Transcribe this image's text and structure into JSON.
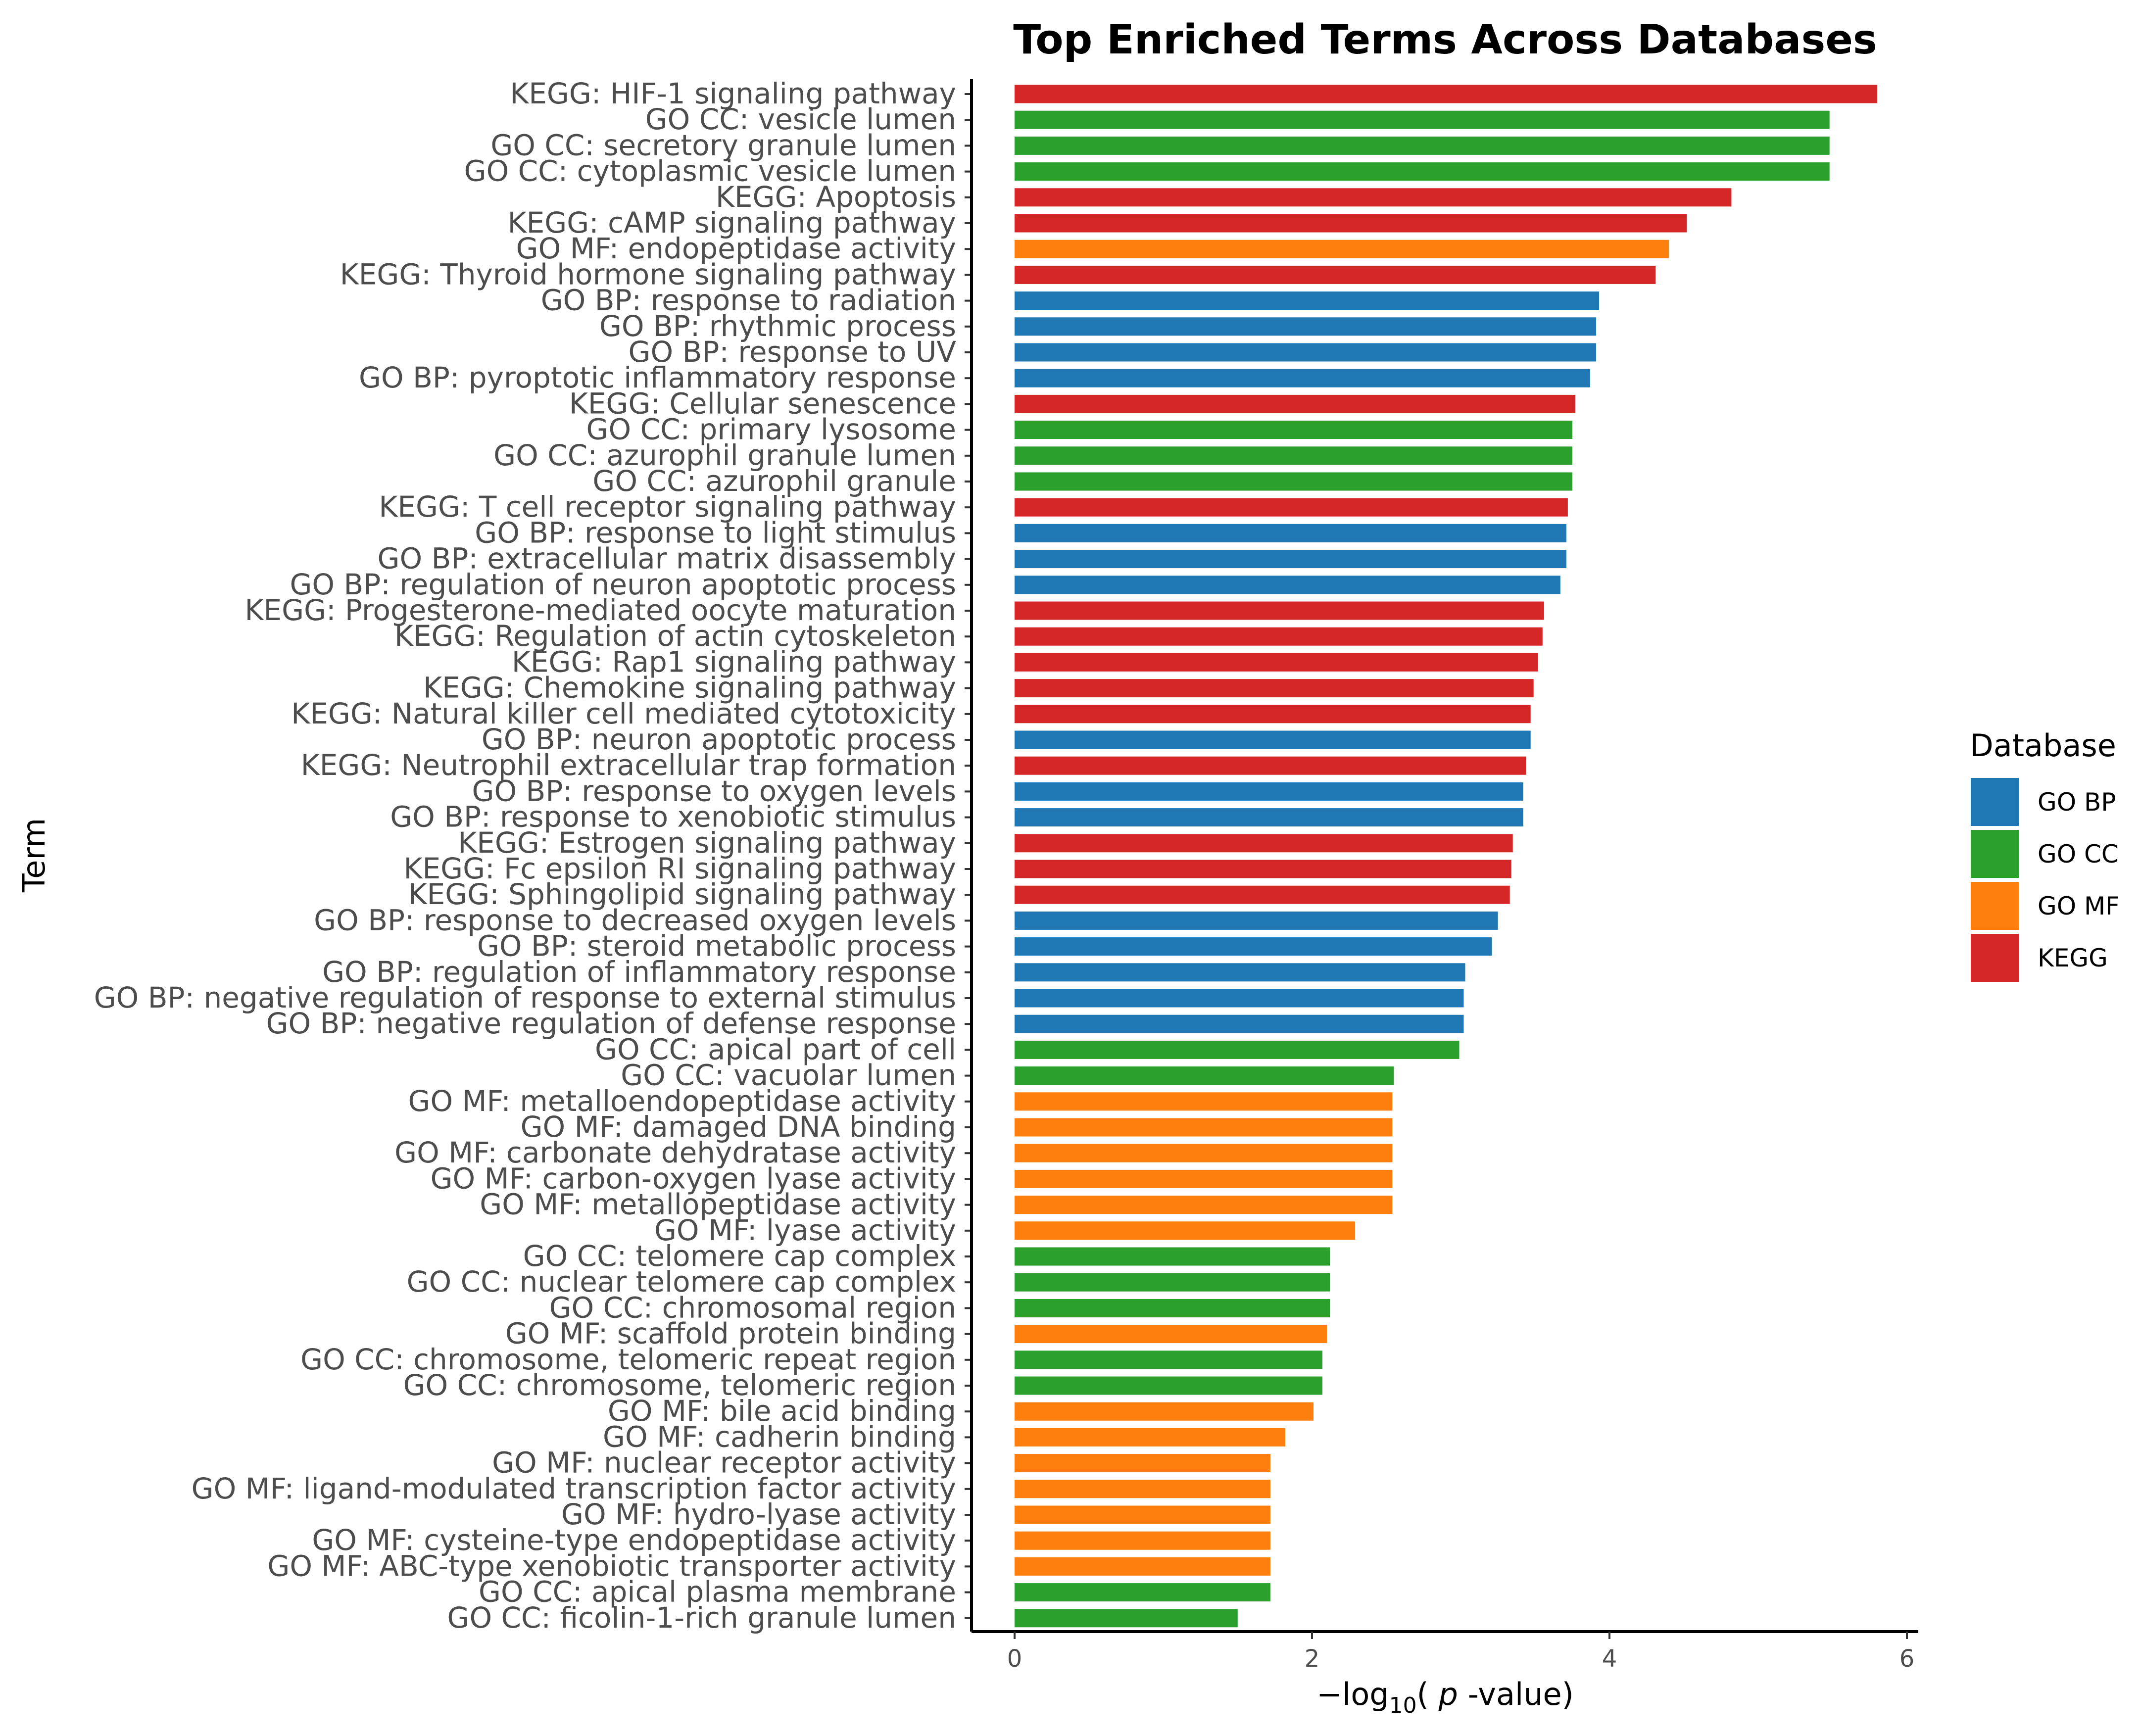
{
  "chart_data": {
    "type": "bar",
    "orientation": "horizontal",
    "title": "Top Enriched Terms Across Databases",
    "xlabel": "−log10( p -value)",
    "xlabel_parts": {
      "prefix": "−log",
      "subscript": "10",
      "open": "( ",
      "italic": "p",
      "suffix": " -value)"
    },
    "ylabel": "Term",
    "xlim": [
      -0.15,
      6.05
    ],
    "xticks": [
      0,
      2,
      4,
      6
    ],
    "xtick_labels": [
      "0",
      "2",
      "4",
      "6"
    ],
    "grid": false,
    "legend": {
      "title": "Database",
      "position": "right",
      "entries": [
        {
          "label": "GO BP",
          "color": "#1f77b4"
        },
        {
          "label": "GO CC",
          "color": "#2ca02c"
        },
        {
          "label": "GO MF",
          "color": "#ff7f0e"
        },
        {
          "label": "KEGG",
          "color": "#d62728"
        }
      ]
    },
    "bars": [
      {
        "term": "KEGG: HIF-1 signaling pathway",
        "db": "KEGG",
        "value": 5.8
      },
      {
        "term": "GO CC: vesicle lumen",
        "db": "GO CC",
        "value": 5.48
      },
      {
        "term": "GO CC: secretory granule lumen",
        "db": "GO CC",
        "value": 5.48
      },
      {
        "term": "GO CC: cytoplasmic vesicle lumen",
        "db": "GO CC",
        "value": 5.48
      },
      {
        "term": "KEGG: Apoptosis",
        "db": "KEGG",
        "value": 4.82
      },
      {
        "term": "KEGG: cAMP signaling pathway",
        "db": "KEGG",
        "value": 4.52
      },
      {
        "term": "GO MF: endopeptidase activity",
        "db": "GO MF",
        "value": 4.4
      },
      {
        "term": "KEGG: Thyroid hormone signaling pathway",
        "db": "KEGG",
        "value": 4.31
      },
      {
        "term": "GO BP: response to radiation",
        "db": "GO BP",
        "value": 3.93
      },
      {
        "term": "GO BP: rhythmic process",
        "db": "GO BP",
        "value": 3.91
      },
      {
        "term": "GO BP: response to UV",
        "db": "GO BP",
        "value": 3.91
      },
      {
        "term": "GO BP: pyroptotic inflammatory response",
        "db": "GO BP",
        "value": 3.87
      },
      {
        "term": "KEGG: Cellular senescence",
        "db": "KEGG",
        "value": 3.77
      },
      {
        "term": "GO CC: primary lysosome",
        "db": "GO CC",
        "value": 3.75
      },
      {
        "term": "GO CC: azurophil granule lumen",
        "db": "GO CC",
        "value": 3.75
      },
      {
        "term": "GO CC: azurophil granule",
        "db": "GO CC",
        "value": 3.75
      },
      {
        "term": "KEGG: T cell receptor signaling pathway",
        "db": "KEGG",
        "value": 3.72
      },
      {
        "term": "GO BP: response to light stimulus",
        "db": "GO BP",
        "value": 3.71
      },
      {
        "term": "GO BP: extracellular matrix disassembly",
        "db": "GO BP",
        "value": 3.71
      },
      {
        "term": "GO BP: regulation of neuron apoptotic process",
        "db": "GO BP",
        "value": 3.67
      },
      {
        "term": "KEGG: Progesterone-mediated oocyte maturation",
        "db": "KEGG",
        "value": 3.56
      },
      {
        "term": "KEGG: Regulation of actin cytoskeleton",
        "db": "KEGG",
        "value": 3.55
      },
      {
        "term": "KEGG: Rap1 signaling pathway",
        "db": "KEGG",
        "value": 3.52
      },
      {
        "term": "KEGG: Chemokine signaling pathway",
        "db": "KEGG",
        "value": 3.49
      },
      {
        "term": "KEGG: Natural killer cell mediated cytotoxicity",
        "db": "KEGG",
        "value": 3.47
      },
      {
        "term": "GO BP: neuron apoptotic process",
        "db": "GO BP",
        "value": 3.47
      },
      {
        "term": "KEGG: Neutrophil extracellular trap formation",
        "db": "KEGG",
        "value": 3.44
      },
      {
        "term": "GO BP: response to oxygen levels",
        "db": "GO BP",
        "value": 3.42
      },
      {
        "term": "GO BP: response to xenobiotic stimulus",
        "db": "GO BP",
        "value": 3.42
      },
      {
        "term": "KEGG: Estrogen signaling pathway",
        "db": "KEGG",
        "value": 3.35
      },
      {
        "term": "KEGG: Fc epsilon RI signaling pathway",
        "db": "KEGG",
        "value": 3.34
      },
      {
        "term": "KEGG: Sphingolipid signaling pathway",
        "db": "KEGG",
        "value": 3.33
      },
      {
        "term": "GO BP: response to decreased oxygen levels",
        "db": "GO BP",
        "value": 3.25
      },
      {
        "term": "GO BP: steroid metabolic process",
        "db": "GO BP",
        "value": 3.21
      },
      {
        "term": "GO BP: regulation of inflammatory response",
        "db": "GO BP",
        "value": 3.03
      },
      {
        "term": "GO BP: negative regulation of response to external stimulus",
        "db": "GO BP",
        "value": 3.02
      },
      {
        "term": "GO BP: negative regulation of defense response",
        "db": "GO BP",
        "value": 3.02
      },
      {
        "term": "GO CC: apical part of cell",
        "db": "GO CC",
        "value": 2.99
      },
      {
        "term": "GO CC: vacuolar lumen",
        "db": "GO CC",
        "value": 2.55
      },
      {
        "term": "GO MF: metalloendopeptidase activity",
        "db": "GO MF",
        "value": 2.54
      },
      {
        "term": "GO MF: damaged DNA binding",
        "db": "GO MF",
        "value": 2.54
      },
      {
        "term": "GO MF: carbonate dehydratase activity",
        "db": "GO MF",
        "value": 2.54
      },
      {
        "term": "GO MF: carbon-oxygen lyase activity",
        "db": "GO MF",
        "value": 2.54
      },
      {
        "term": "GO MF: metallopeptidase activity",
        "db": "GO MF",
        "value": 2.54
      },
      {
        "term": "GO MF: lyase activity",
        "db": "GO MF",
        "value": 2.29
      },
      {
        "term": "GO CC: telomere cap complex",
        "db": "GO CC",
        "value": 2.12
      },
      {
        "term": "GO CC: nuclear telomere cap complex",
        "db": "GO CC",
        "value": 2.12
      },
      {
        "term": "GO CC: chromosomal region",
        "db": "GO CC",
        "value": 2.12
      },
      {
        "term": "GO MF: scaffold protein binding",
        "db": "GO MF",
        "value": 2.1
      },
      {
        "term": "GO CC: chromosome, telomeric repeat region",
        "db": "GO CC",
        "value": 2.07
      },
      {
        "term": "GO CC: chromosome, telomeric region",
        "db": "GO CC",
        "value": 2.07
      },
      {
        "term": "GO MF: bile acid binding",
        "db": "GO MF",
        "value": 2.01
      },
      {
        "term": "GO MF: cadherin binding",
        "db": "GO MF",
        "value": 1.82
      },
      {
        "term": "GO MF: nuclear receptor activity",
        "db": "GO MF",
        "value": 1.72
      },
      {
        "term": "GO MF: ligand-modulated transcription factor activity",
        "db": "GO MF",
        "value": 1.72
      },
      {
        "term": "GO MF: hydro-lyase activity",
        "db": "GO MF",
        "value": 1.72
      },
      {
        "term": "GO MF: cysteine-type endopeptidase activity",
        "db": "GO MF",
        "value": 1.72
      },
      {
        "term": "GO MF: ABC-type xenobiotic transporter activity",
        "db": "GO MF",
        "value": 1.72
      },
      {
        "term": "GO CC: apical plasma membrane",
        "db": "GO CC",
        "value": 1.72
      },
      {
        "term": "GO CC: ficolin-1-rich granule lumen",
        "db": "GO CC",
        "value": 1.5
      }
    ]
  }
}
